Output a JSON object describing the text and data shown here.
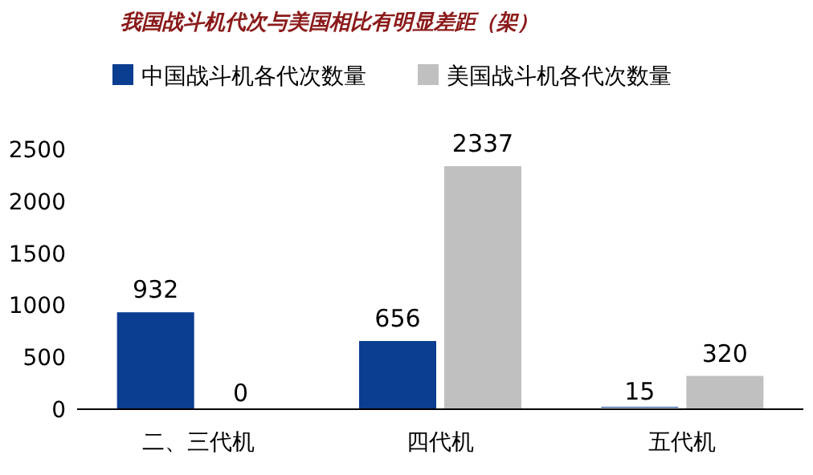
{
  "chart_data": {
    "type": "bar",
    "title": "我国战斗机代次与美国相比有明显差距（架）",
    "categories": [
      "二、三代机",
      "四代机",
      "五代机"
    ],
    "series": [
      {
        "name": "中国战斗机各代次数量",
        "color": "#0b3d91",
        "values": [
          932,
          656,
          15
        ]
      },
      {
        "name": "美国战斗机各代次数量",
        "color": "#c0c0c0",
        "values": [
          0,
          2337,
          320
        ]
      }
    ],
    "ylim": [
      0,
      2500
    ],
    "yticks": [
      0,
      500,
      1000,
      1500,
      2000,
      2500
    ],
    "grid": false,
    "legend": "top left",
    "data_labels": true
  }
}
